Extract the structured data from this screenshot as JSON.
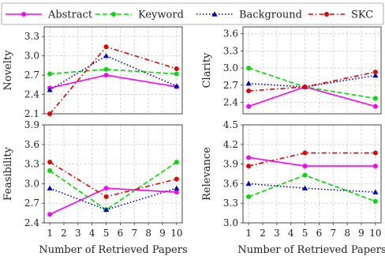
{
  "chart_data": {
    "legend": {
      "placement": "top",
      "entries": [
        {
          "name": "Abstract",
          "color": "#ff00ff",
          "dash": "solid",
          "marker": "circle"
        },
        {
          "name": "Keyword",
          "color": "#00dd00",
          "dash": "dashed",
          "marker": "circle"
        },
        {
          "name": "Background",
          "color": "#0000cc",
          "dash": "dotted",
          "marker": "triangle"
        },
        {
          "name": "SKC",
          "color": "#ee0000",
          "dash": "dashdot",
          "marker": "circle"
        }
      ]
    },
    "x": [
      1,
      5,
      10
    ],
    "x_ticks": [
      "1",
      "2",
      "3",
      "4",
      "5",
      "6",
      "7",
      "8",
      "9",
      "10"
    ],
    "grid": true,
    "panels": [
      {
        "id": "novelty",
        "type": "line",
        "ylabel": "Novelty",
        "xlabel": "",
        "ylim": [
          2.1,
          3.45
        ],
        "yticks": [
          "2.1",
          "2.4",
          "2.7",
          "3.0",
          "3.3"
        ],
        "show_x_ticks": false,
        "series": [
          {
            "name": "Abstract",
            "values": [
              2.5,
              2.7,
              2.52
            ]
          },
          {
            "name": "Keyword",
            "values": [
              2.72,
              2.79,
              2.72
            ]
          },
          {
            "name": "Background",
            "values": [
              2.47,
              3.0,
              2.53
            ]
          },
          {
            "name": "SKC",
            "values": [
              2.1,
              3.14,
              2.8
            ]
          }
        ]
      },
      {
        "id": "clarity",
        "type": "line",
        "ylabel": "Clarity",
        "xlabel": "",
        "ylim": [
          2.2,
          3.72
        ],
        "yticks": [
          "2.4",
          "2.7",
          "3.0",
          "3.3",
          "3.6"
        ],
        "show_x_ticks": false,
        "series": [
          {
            "name": "Abstract",
            "values": [
              2.33,
              2.67,
              2.33
            ]
          },
          {
            "name": "Keyword",
            "values": [
              3.0,
              2.67,
              2.47
            ]
          },
          {
            "name": "Background",
            "values": [
              2.73,
              2.67,
              2.87
            ]
          },
          {
            "name": "SKC",
            "values": [
              2.6,
              2.67,
              2.93
            ]
          }
        ]
      },
      {
        "id": "feasibility",
        "type": "line",
        "ylabel": "Feasibility",
        "xlabel": "Number of Retrieved Papers",
        "ylim": [
          2.4,
          3.9
        ],
        "yticks": [
          "2.4",
          "2.7",
          "3.0",
          "3.3",
          "3.6",
          "3.9"
        ],
        "show_x_ticks": true,
        "series": [
          {
            "name": "Abstract",
            "values": [
              2.53,
              2.93,
              2.87
            ]
          },
          {
            "name": "Keyword",
            "values": [
              3.2,
              2.6,
              3.33
            ]
          },
          {
            "name": "Background",
            "values": [
              2.93,
              2.6,
              2.93
            ]
          },
          {
            "name": "SKC",
            "values": [
              3.33,
              2.8,
              3.07
            ]
          }
        ]
      },
      {
        "id": "relevance",
        "type": "line",
        "ylabel": "Relevance",
        "xlabel": "Number of Retrieved Papers",
        "ylim": [
          3.0,
          4.5
        ],
        "yticks": [
          "3.0",
          "3.3",
          "3.6",
          "3.9",
          "4.2",
          "4.5"
        ],
        "show_x_ticks": true,
        "series": [
          {
            "name": "Abstract",
            "values": [
              4.0,
              3.87,
              3.87
            ]
          },
          {
            "name": "Keyword",
            "values": [
              3.4,
              3.73,
              3.33
            ]
          },
          {
            "name": "Background",
            "values": [
              3.6,
              3.53,
              3.47
            ]
          },
          {
            "name": "SKC",
            "values": [
              3.87,
              4.07,
              4.07
            ]
          }
        ]
      }
    ]
  }
}
